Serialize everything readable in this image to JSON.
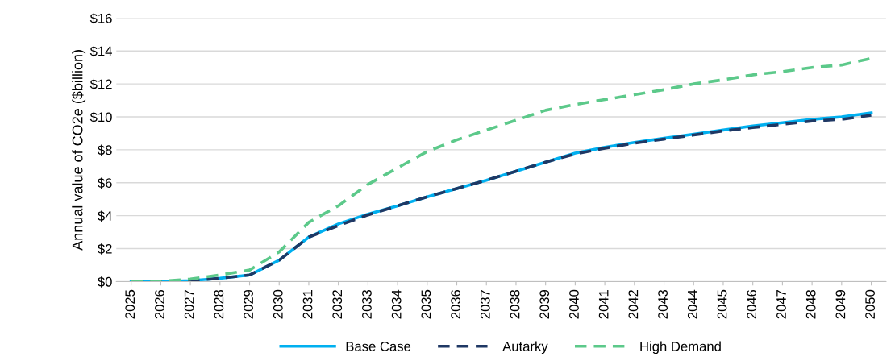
{
  "chart_data": {
    "type": "line",
    "ylabel": "Annual value of CO2e ($billion)",
    "categories": [
      "2025",
      "2026",
      "2027",
      "2028",
      "2029",
      "2030",
      "2031",
      "2032",
      "2033",
      "2034",
      "2035",
      "2036",
      "2037",
      "2038",
      "2039",
      "2040",
      "2041",
      "2042",
      "2043",
      "2044",
      "2045",
      "2046",
      "2047",
      "2048",
      "2049",
      "2050"
    ],
    "series": [
      {
        "name": "Base Case",
        "color": "#00b0f0",
        "line_style": "solid",
        "values": [
          0,
          0,
          0.05,
          0.2,
          0.4,
          1.3,
          2.7,
          3.5,
          4.1,
          4.6,
          5.15,
          5.65,
          6.15,
          6.7,
          7.25,
          7.8,
          8.15,
          8.45,
          8.7,
          8.95,
          9.2,
          9.45,
          9.65,
          9.85,
          10.0,
          10.25
        ]
      },
      {
        "name": "Autarky",
        "color": "#1f3864",
        "line_style": "dashed",
        "values": [
          0,
          0,
          0.05,
          0.2,
          0.4,
          1.3,
          2.7,
          3.4,
          4.05,
          4.6,
          5.15,
          5.65,
          6.15,
          6.7,
          7.25,
          7.75,
          8.1,
          8.4,
          8.65,
          8.9,
          9.15,
          9.35,
          9.55,
          9.75,
          9.85,
          10.1
        ]
      },
      {
        "name": "High Demand",
        "color": "#5cc98a",
        "line_style": "dashed",
        "values": [
          0,
          0.02,
          0.15,
          0.4,
          0.7,
          1.8,
          3.6,
          4.6,
          5.9,
          6.9,
          7.9,
          8.6,
          9.2,
          9.8,
          10.4,
          10.75,
          11.05,
          11.35,
          11.65,
          12.0,
          12.25,
          12.55,
          12.75,
          13.0,
          13.15,
          13.55
        ]
      }
    ],
    "ylim": [
      0,
      16
    ],
    "yticks": [
      {
        "value": 0,
        "label": "$0"
      },
      {
        "value": 2,
        "label": "$2"
      },
      {
        "value": 4,
        "label": "$4"
      },
      {
        "value": 6,
        "label": "$6"
      },
      {
        "value": 8,
        "label": "$8"
      },
      {
        "value": 10,
        "label": "$10"
      },
      {
        "value": 12,
        "label": "$12"
      },
      {
        "value": 14,
        "label": "$14"
      },
      {
        "value": 16,
        "label": "$16"
      }
    ],
    "grid": "y",
    "legend": "bottom"
  }
}
